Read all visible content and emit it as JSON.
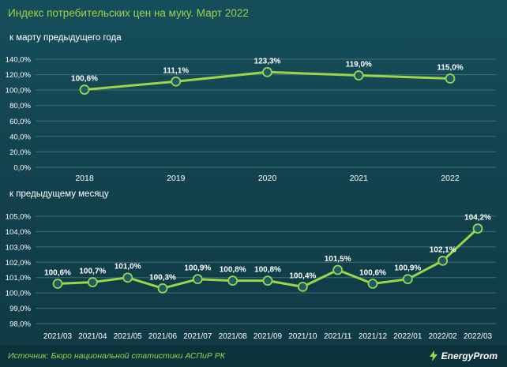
{
  "title": "Индекс потребительских цен на муку. Март 2022",
  "source": "Источник: Бюро национальной статистики АСПиР РК",
  "brand": "EnergyProm",
  "colors": {
    "line": "#9bd54a",
    "grid": "#3f6f79",
    "text": "#ffffff",
    "accent": "#9bd54a"
  },
  "chart_data": [
    {
      "type": "line",
      "title": "к марту предыдущего года",
      "categories": [
        "2018",
        "2019",
        "2020",
        "2021",
        "2022"
      ],
      "values": [
        100.6,
        111.1,
        123.3,
        119.0,
        115.0
      ],
      "labels": [
        "100,6%",
        "111,1%",
        "123,3%",
        "119,0%",
        "115,0%"
      ],
      "ylim": [
        0,
        140
      ],
      "yticks": [
        0,
        20,
        40,
        60,
        80,
        100,
        120,
        140
      ],
      "ytick_labels": [
        "0,0%",
        "20,0%",
        "40,0%",
        "60,0%",
        "80,0%",
        "100,0%",
        "120,0%",
        "140,0%"
      ],
      "grid": true
    },
    {
      "type": "line",
      "title": "к предыдущему месяцу",
      "categories": [
        "2021/03",
        "2021/04",
        "2021/05",
        "2021/06",
        "2021/07",
        "2021/08",
        "2021/09",
        "2021/10",
        "2021/11",
        "2021/12",
        "2022/01",
        "2022/02",
        "2022/03"
      ],
      "values": [
        100.6,
        100.7,
        101.0,
        100.3,
        100.9,
        100.8,
        100.8,
        100.4,
        101.5,
        100.6,
        100.9,
        102.1,
        104.2
      ],
      "labels": [
        "100,6%",
        "100,7%",
        "101,0%",
        "100,3%",
        "100,9%",
        "100,8%",
        "100,8%",
        "100,4%",
        "101,5%",
        "100,6%",
        "100,9%",
        "102,1%",
        "104,2%"
      ],
      "ylim": [
        98,
        105
      ],
      "yticks": [
        98,
        99,
        100,
        101,
        102,
        103,
        104,
        105
      ],
      "ytick_labels": [
        "98,0%",
        "99,0%",
        "100,0%",
        "101,0%",
        "102,0%",
        "103,0%",
        "104,0%",
        "105,0%"
      ],
      "grid": true
    }
  ]
}
